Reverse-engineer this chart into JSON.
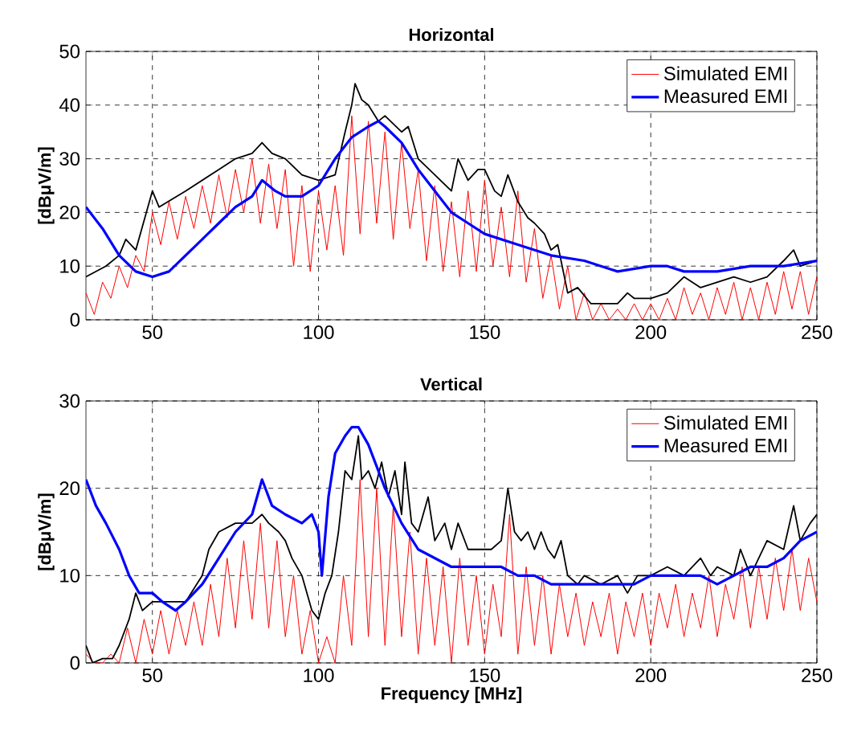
{
  "chart_data": [
    {
      "type": "line",
      "title": "Horizontal",
      "ylabel": "[dBμV/m]",
      "xlim": [
        30,
        250
      ],
      "ylim": [
        0,
        50
      ],
      "xticks": [
        50,
        100,
        150,
        200,
        250
      ],
      "yticks": [
        0,
        10,
        20,
        30,
        40,
        50
      ],
      "grid": true,
      "legend": "top right",
      "series": [
        {
          "name": "Simulated EMI",
          "color": "#ff0000",
          "x": [
            30,
            32.5,
            35,
            37.5,
            40,
            42.5,
            45,
            47.5,
            50,
            52.5,
            55,
            57.5,
            60,
            62.5,
            65,
            67.5,
            70,
            72.5,
            75,
            77.5,
            80,
            82.5,
            85,
            87.5,
            90,
            92.5,
            95,
            97.5,
            100,
            102.5,
            105,
            107.5,
            110,
            112.5,
            115,
            117.5,
            120,
            122.5,
            125,
            127.5,
            130,
            132.5,
            135,
            137.5,
            140,
            142.5,
            145,
            147.5,
            150,
            152.5,
            155,
            157.5,
            160,
            162.5,
            165,
            167.5,
            170,
            172.5,
            175,
            177.5,
            180,
            182.5,
            185,
            187.5,
            190,
            192.5,
            195,
            197.5,
            200,
            202.5,
            205,
            207.5,
            210,
            212.5,
            215,
            217.5,
            220,
            222.5,
            225,
            227.5,
            230,
            232.5,
            235,
            237.5,
            240,
            242.5,
            245,
            247.5,
            250
          ],
          "values": [
            5,
            1,
            7,
            4,
            10,
            6,
            12,
            9,
            20,
            14,
            22,
            15,
            23,
            17,
            25,
            18,
            27,
            19,
            28,
            20,
            30,
            18,
            29,
            17,
            28,
            10,
            25,
            9,
            24,
            13,
            25,
            12,
            38,
            16,
            37,
            18,
            35,
            15,
            33,
            17,
            28,
            11,
            25,
            9,
            22,
            8,
            24,
            9,
            26,
            10,
            21,
            8,
            24,
            7,
            17,
            4,
            12,
            2,
            10,
            0,
            5,
            0,
            3,
            0,
            2,
            0,
            3,
            0,
            3,
            0,
            4,
            0,
            6,
            1,
            5,
            0,
            6,
            1,
            7,
            0,
            6,
            0,
            7,
            1,
            9,
            2,
            9,
            1,
            8
          ]
        },
        {
          "color": "#000000",
          "x": [
            30,
            36,
            40,
            42,
            45,
            50,
            52,
            60,
            65,
            70,
            75,
            80,
            83,
            86,
            90,
            95,
            100,
            105,
            108,
            110,
            111,
            113,
            115,
            118,
            120,
            125,
            127,
            130,
            135,
            140,
            142,
            145,
            148,
            150,
            153,
            155,
            157,
            160,
            163,
            165,
            168,
            170,
            172,
            175,
            178,
            182,
            185,
            190,
            193,
            195,
            200,
            205,
            210,
            215,
            220,
            225,
            230,
            235,
            240,
            243,
            245,
            250
          ],
          "values": [
            8,
            10,
            12,
            15,
            13,
            24,
            21,
            24,
            26,
            28,
            30,
            31,
            33,
            31,
            30,
            27,
            26,
            27,
            35,
            40,
            44,
            41,
            40,
            37,
            38,
            35,
            36,
            30,
            27,
            24,
            30,
            26,
            28,
            28,
            24,
            23,
            27,
            22,
            19,
            18,
            16,
            13,
            14,
            5,
            6,
            3,
            3,
            3,
            5,
            4,
            4,
            5,
            8,
            6,
            7,
            8,
            7,
            8,
            11,
            13,
            10,
            11
          ]
        },
        {
          "name": "Measured EMI",
          "color": "#0000ff",
          "x": [
            30,
            35,
            40,
            45,
            50,
            55,
            60,
            65,
            70,
            75,
            80,
            83,
            87,
            90,
            95,
            100,
            105,
            110,
            115,
            118,
            120,
            125,
            130,
            135,
            140,
            145,
            150,
            160,
            170,
            180,
            185,
            190,
            200,
            205,
            210,
            220,
            230,
            240,
            250
          ],
          "values": [
            21,
            17,
            12,
            9,
            8,
            9,
            12,
            15,
            18,
            21,
            23,
            26,
            24,
            23,
            23,
            25,
            30,
            34,
            36,
            37,
            36,
            33,
            28,
            24,
            20,
            18,
            16,
            14,
            12,
            11,
            10,
            9,
            10,
            10,
            9,
            9,
            10,
            10,
            11
          ]
        }
      ]
    },
    {
      "type": "line",
      "title": "Vertical",
      "xlabel": "Frequency [MHz]",
      "ylabel": "[dBμV/m]",
      "xlim": [
        30,
        250
      ],
      "ylim": [
        0,
        30
      ],
      "xticks": [
        50,
        100,
        150,
        200,
        250
      ],
      "yticks": [
        0,
        10,
        20,
        30
      ],
      "grid": true,
      "legend": "top right",
      "series": [
        {
          "name": "Simulated EMI",
          "color": "#ff0000",
          "x": [
            30,
            32.5,
            35,
            37.5,
            40,
            42.5,
            45,
            47.5,
            50,
            52.5,
            55,
            57.5,
            60,
            62.5,
            65,
            67.5,
            70,
            72.5,
            75,
            77.5,
            80,
            82.5,
            85,
            87.5,
            90,
            92.5,
            95,
            97.5,
            100,
            102.5,
            105,
            107.5,
            110,
            112.5,
            115,
            117.5,
            120,
            122.5,
            125,
            127.5,
            130,
            132.5,
            135,
            137.5,
            140,
            142.5,
            145,
            147.5,
            150,
            152.5,
            155,
            157.5,
            160,
            162.5,
            165,
            167.5,
            170,
            172.5,
            175,
            177.5,
            180,
            182.5,
            185,
            187.5,
            190,
            192.5,
            195,
            197.5,
            200,
            202.5,
            205,
            207.5,
            210,
            212.5,
            215,
            217.5,
            220,
            222.5,
            225,
            227.5,
            230,
            232.5,
            235,
            237.5,
            240,
            242.5,
            245,
            247.5,
            250
          ],
          "values": [
            1,
            0,
            0,
            1,
            0,
            4,
            0,
            5,
            1,
            6,
            1,
            6,
            2,
            7,
            2,
            9,
            3,
            12,
            4,
            14,
            5,
            16,
            4,
            14,
            3,
            10,
            1,
            6,
            0,
            3,
            0,
            10,
            2,
            21,
            3,
            20,
            2,
            18,
            3,
            15,
            1,
            12,
            2,
            11,
            0,
            12,
            2,
            10,
            1,
            9,
            3,
            17,
            1,
            11,
            2,
            10,
            1,
            9,
            3,
            8,
            2,
            7,
            3,
            8,
            1,
            7,
            3,
            8,
            2,
            8,
            4,
            9,
            3,
            8,
            4,
            10,
            3,
            9,
            5,
            11,
            4,
            11,
            5,
            12,
            6,
            13,
            6,
            12,
            7
          ]
        },
        {
          "color": "#000000",
          "x": [
            30,
            32,
            35,
            38,
            40,
            43,
            45,
            47,
            50,
            55,
            60,
            65,
            67,
            70,
            75,
            80,
            83,
            85,
            88,
            90,
            92,
            95,
            98,
            100,
            102,
            104,
            106,
            108,
            110,
            112,
            113,
            115,
            117,
            119,
            121,
            123,
            125,
            126,
            128,
            130,
            133,
            135,
            138,
            140,
            142,
            145,
            148,
            152,
            155,
            157,
            159,
            161,
            163,
            165,
            167,
            169,
            171,
            173,
            175,
            178,
            180,
            185,
            190,
            193,
            196,
            200,
            205,
            210,
            215,
            218,
            220,
            225,
            227,
            230,
            235,
            240,
            243,
            245,
            248,
            250
          ],
          "values": [
            2,
            0,
            0.5,
            0.5,
            2,
            5,
            8,
            6,
            7,
            7,
            7,
            10,
            13,
            15,
            16,
            16,
            17,
            16,
            15,
            14,
            12,
            10,
            6,
            5,
            8,
            10,
            15,
            22,
            21,
            26,
            21,
            22,
            20,
            23,
            19,
            22,
            17,
            23,
            16,
            15,
            19,
            14,
            16,
            13,
            16,
            13,
            13,
            13,
            14,
            20,
            15,
            14,
            15,
            13,
            15,
            13,
            12,
            14,
            10,
            9,
            10,
            9,
            10,
            8,
            10,
            10,
            11,
            10,
            12,
            10,
            11,
            10,
            13,
            10,
            14,
            13,
            18,
            14,
            16,
            17
          ]
        },
        {
          "name": "Measured EMI",
          "color": "#0000ff",
          "x": [
            30,
            33,
            36,
            40,
            43,
            46,
            50,
            53,
            57,
            60,
            65,
            70,
            75,
            80,
            83,
            86,
            90,
            95,
            98,
            100,
            101,
            103,
            105,
            108,
            110,
            112,
            115,
            118,
            120,
            125,
            130,
            135,
            140,
            145,
            150,
            155,
            160,
            165,
            170,
            175,
            180,
            185,
            190,
            195,
            200,
            205,
            210,
            215,
            220,
            225,
            230,
            235,
            240,
            245,
            250
          ],
          "values": [
            21,
            18,
            16,
            13,
            10,
            8,
            8,
            7,
            6,
            7,
            9,
            12,
            15,
            17,
            21,
            18,
            17,
            16,
            17,
            15,
            10,
            19,
            24,
            26,
            27,
            27,
            25,
            22,
            20,
            16,
            13,
            12,
            11,
            11,
            11,
            11,
            10,
            10,
            9,
            9,
            9,
            9,
            9,
            9,
            10,
            10,
            10,
            10,
            9,
            10,
            11,
            11,
            12,
            14,
            15
          ]
        }
      ]
    }
  ]
}
